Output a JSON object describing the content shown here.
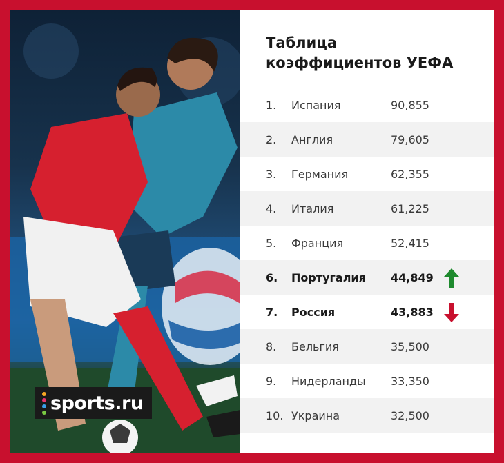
{
  "title_line1": "Таблица",
  "title_line2": "коэффициентов УЕФА",
  "brand": "sports.ru",
  "colors": {
    "frame": "#c8102e",
    "up": "#1e8a2e",
    "down": "#c8102e"
  },
  "rows": [
    {
      "rank": "1.",
      "country": "Испания",
      "points": "90,855"
    },
    {
      "rank": "2.",
      "country": "Англия",
      "points": "79,605"
    },
    {
      "rank": "3.",
      "country": "Германия",
      "points": "62,355"
    },
    {
      "rank": "4.",
      "country": "Италия",
      "points": "61,225"
    },
    {
      "rank": "5.",
      "country": "Франция",
      "points": "52,415"
    },
    {
      "rank": "6.",
      "country": "Португалия",
      "points": "44,849",
      "trend": "up-arrow-icon"
    },
    {
      "rank": "7.",
      "country": "Россия",
      "points": "43,883",
      "trend": "down-arrow-icon"
    },
    {
      "rank": "8.",
      "country": "Бельгия",
      "points": "35,500"
    },
    {
      "rank": "9.",
      "country": "Нидерланды",
      "points": "33,350"
    },
    {
      "rank": "10.",
      "country": "Украина",
      "points": "32,500"
    }
  ]
}
